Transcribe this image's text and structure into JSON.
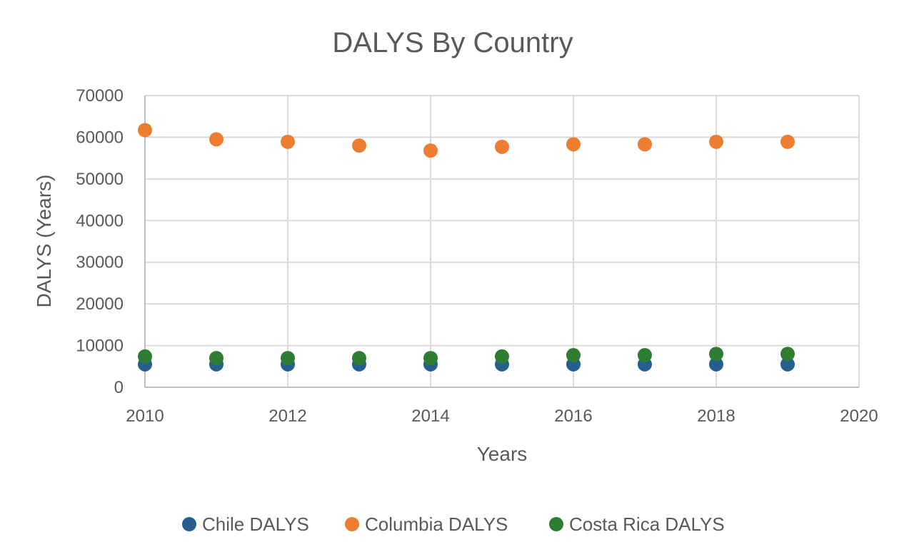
{
  "chart_data": {
    "type": "scatter",
    "title": "DALYS By Country",
    "xlabel": "Years",
    "ylabel": "DALYS (Years)",
    "xlim": [
      2010,
      2020
    ],
    "ylim": [
      0,
      70000
    ],
    "x_ticks": [
      2010,
      2012,
      2014,
      2016,
      2018,
      2020
    ],
    "y_ticks": [
      0,
      10000,
      20000,
      30000,
      40000,
      50000,
      60000,
      70000
    ],
    "y_tick_labels": [
      "0",
      "10000",
      "20000",
      "30000",
      "40000",
      "50000",
      "60000",
      "70000"
    ],
    "grid": true,
    "legend_position": "bottom",
    "x": [
      2010,
      2011,
      2012,
      2013,
      2014,
      2015,
      2016,
      2017,
      2018,
      2019
    ],
    "series": [
      {
        "name": "Chile DALYS",
        "color": "#255e91",
        "values": [
          5500,
          5500,
          5500,
          5500,
          5500,
          5500,
          5500,
          5500,
          5500,
          5500
        ]
      },
      {
        "name": "Columbia DALYS",
        "color": "#ed7d31",
        "values": [
          61700,
          59500,
          58900,
          58000,
          56800,
          57700,
          58300,
          58300,
          58900,
          58900
        ]
      },
      {
        "name": "Costa Rica DALYS",
        "color": "#2e7d32",
        "values": [
          7400,
          7000,
          7000,
          7000,
          7000,
          7400,
          7700,
          7700,
          8000,
          8000
        ]
      }
    ]
  }
}
